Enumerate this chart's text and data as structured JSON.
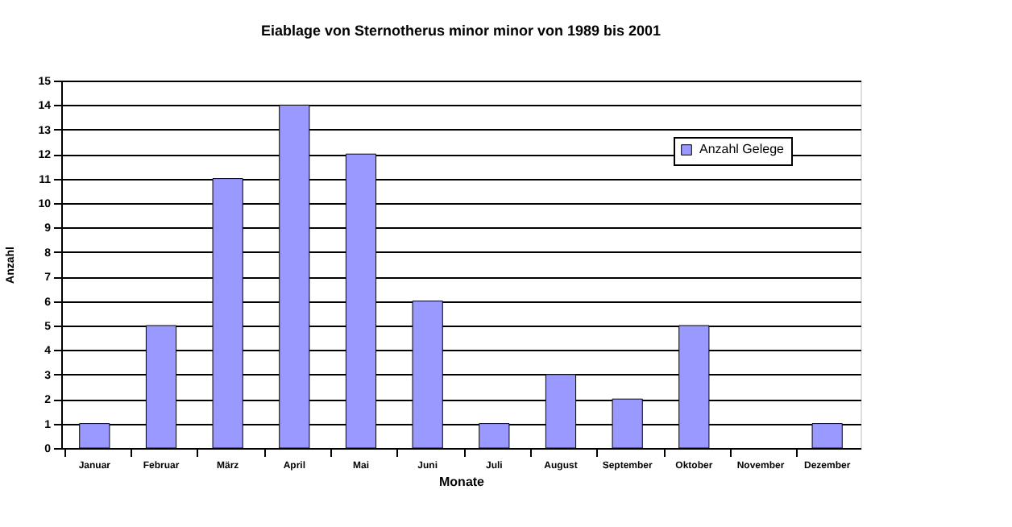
{
  "chart_data": {
    "type": "bar",
    "title": "Eiablage von Sternotherus minor minor von 1989 bis 2001",
    "xlabel": "Monate",
    "ylabel": "Anzahl",
    "categories": [
      "Januar",
      "Februar",
      "März",
      "April",
      "Mai",
      "Juni",
      "Juli",
      "August",
      "September",
      "Oktober",
      "November",
      "Dezember"
    ],
    "series": [
      {
        "name": "Anzahl Gelege",
        "color": "#9999ff",
        "values": [
          1,
          5,
          11,
          14,
          12,
          6,
          1,
          3,
          2,
          5,
          0,
          1
        ]
      }
    ],
    "ylim": [
      0,
      15
    ],
    "yticks": [
      0,
      1,
      2,
      3,
      4,
      5,
      6,
      7,
      8,
      9,
      10,
      11,
      12,
      13,
      14,
      15
    ],
    "grid": "y",
    "legend": "top right"
  }
}
